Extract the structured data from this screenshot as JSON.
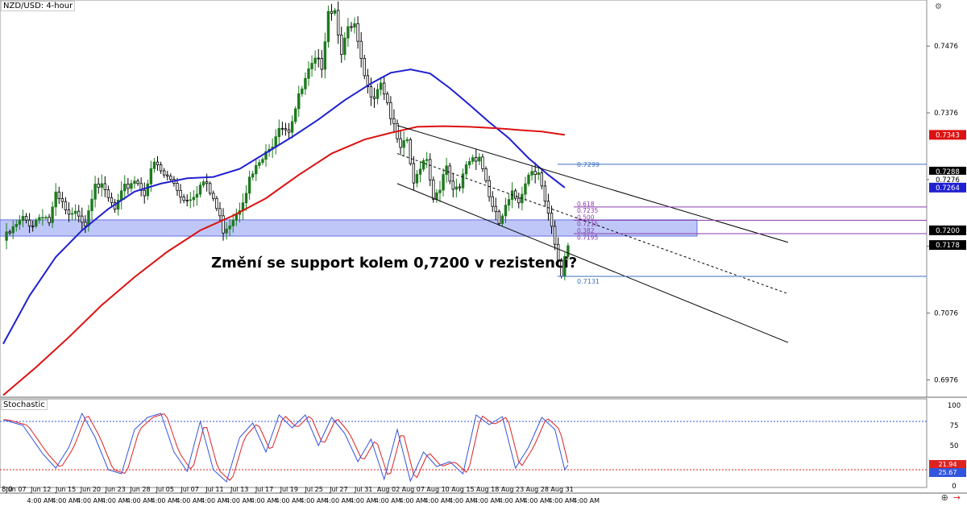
{
  "header": {
    "symbol": "NZD/USD: 4-hour"
  },
  "annotation": {
    "question": "Změní se support kolem 0,7200 v rezistenci?"
  },
  "colors": {
    "up": "#1e7a1e",
    "down": "#000000",
    "ma_fast": "#2020d0",
    "ma_slow": "#dd1111",
    "support_zone": "#aab4f5",
    "stoch_k": "#3355dd",
    "stoch_d": "#dd2222"
  },
  "chart_data": {
    "type": "candlestick",
    "title": "NZD/USD: 4-hour",
    "ylim": [
      0.695,
      0.7545
    ],
    "y_ticks": [
      "0.7476",
      "0.7376",
      "0.7276",
      "0.7176",
      "0.7076",
      "0.6976"
    ],
    "x_ticks": [
      "Jun 07",
      "Jun 12",
      "Jun 15",
      "Jun 20",
      "Jun 23",
      "Jun 28",
      "Jul 05",
      "Jul 07",
      "Jul 11",
      "Jul 13",
      "Jul 17",
      "Jul 19",
      "Jul 25",
      "Jul 27",
      "Jul 31",
      "Aug 02",
      "Aug 07",
      "Aug 10",
      "Aug 15",
      "Aug 18",
      "Aug 23",
      "Aug 28",
      "Aug 31"
    ],
    "x_sub_label": "4:00 AM",
    "x_first_label": "8:0",
    "price_path": [
      [
        0,
        0.7185
      ],
      [
        3,
        0.7201
      ],
      [
        6,
        0.7216
      ],
      [
        9,
        0.721
      ],
      [
        12,
        0.7226
      ],
      [
        14,
        0.7213
      ],
      [
        16,
        0.725
      ],
      [
        18,
        0.7238
      ],
      [
        20,
        0.7218
      ],
      [
        23,
        0.7226
      ],
      [
        25,
        0.7212
      ],
      [
        28,
        0.7276
      ],
      [
        31,
        0.7255
      ],
      [
        34,
        0.723
      ],
      [
        37,
        0.7262
      ],
      [
        40,
        0.7277
      ],
      [
        43,
        0.7258
      ],
      [
        46,
        0.73
      ],
      [
        49,
        0.7282
      ],
      [
        52,
        0.7272
      ],
      [
        55,
        0.7246
      ],
      [
        58,
        0.7255
      ],
      [
        61,
        0.7272
      ],
      [
        64,
        0.7247
      ],
      [
        67,
        0.7202
      ],
      [
        69,
        0.7212
      ],
      [
        72,
        0.7236
      ],
      [
        75,
        0.7275
      ],
      [
        78,
        0.73
      ],
      [
        81,
        0.7318
      ],
      [
        84,
        0.736
      ],
      [
        87,
        0.7352
      ],
      [
        90,
        0.7398
      ],
      [
        93,
        0.7436
      ],
      [
        95,
        0.7452
      ],
      [
        97,
        0.7448
      ],
      [
        99,
        0.7532
      ],
      [
        101,
        0.753
      ],
      [
        103,
        0.747
      ],
      [
        105,
        0.7498
      ],
      [
        107,
        0.7505
      ],
      [
        109,
        0.745
      ],
      [
        111,
        0.741
      ],
      [
        113,
        0.7405
      ],
      [
        115,
        0.7425
      ],
      [
        117,
        0.7392
      ],
      [
        119,
        0.7352
      ],
      [
        121,
        0.7318
      ],
      [
        123,
        0.7335
      ],
      [
        125,
        0.7265
      ],
      [
        127,
        0.7298
      ],
      [
        129,
        0.7312
      ],
      [
        131,
        0.7248
      ],
      [
        133,
        0.7268
      ],
      [
        135,
        0.729
      ],
      [
        137,
        0.7255
      ],
      [
        139,
        0.7262
      ],
      [
        141,
        0.73
      ],
      [
        143,
        0.731
      ],
      [
        145,
        0.7312
      ],
      [
        147,
        0.7275
      ],
      [
        149,
        0.7232
      ],
      [
        151,
        0.721
      ],
      [
        153,
        0.7232
      ],
      [
        155,
        0.7252
      ],
      [
        157,
        0.7245
      ],
      [
        159,
        0.7275
      ],
      [
        161,
        0.7292
      ],
      [
        163,
        0.729
      ],
      [
        165,
        0.724
      ],
      [
        167,
        0.72
      ],
      [
        169,
        0.715
      ],
      [
        170,
        0.7131
      ],
      [
        171,
        0.7163
      ],
      [
        172,
        0.7178
      ]
    ],
    "series": [
      {
        "name": "MA 100",
        "color": "#2020d0",
        "values": [
          [
            0,
            0.703
          ],
          [
            8,
            0.7102
          ],
          [
            16,
            0.716
          ],
          [
            24,
            0.72
          ],
          [
            32,
            0.7232
          ],
          [
            40,
            0.7258
          ],
          [
            48,
            0.727
          ],
          [
            56,
            0.7278
          ],
          [
            64,
            0.728
          ],
          [
            72,
            0.7292
          ],
          [
            80,
            0.7316
          ],
          [
            88,
            0.734
          ],
          [
            96,
            0.7366
          ],
          [
            104,
            0.7395
          ],
          [
            112,
            0.742
          ],
          [
            118,
            0.7436
          ],
          [
            124,
            0.7441
          ],
          [
            130,
            0.7435
          ],
          [
            136,
            0.7413
          ],
          [
            142,
            0.7388
          ],
          [
            148,
            0.7362
          ],
          [
            154,
            0.7338
          ],
          [
            160,
            0.7308
          ],
          [
            166,
            0.7283
          ],
          [
            171,
            0.7264
          ]
        ]
      },
      {
        "name": "MA 200",
        "color": "#dd1111",
        "values": [
          [
            0,
            0.6953
          ],
          [
            10,
            0.6995
          ],
          [
            20,
            0.704
          ],
          [
            30,
            0.7088
          ],
          [
            40,
            0.713
          ],
          [
            50,
            0.7168
          ],
          [
            60,
            0.72
          ],
          [
            70,
            0.7222
          ],
          [
            80,
            0.7248
          ],
          [
            90,
            0.7283
          ],
          [
            100,
            0.7315
          ],
          [
            110,
            0.7336
          ],
          [
            118,
            0.7346
          ],
          [
            126,
            0.7355
          ],
          [
            134,
            0.7356
          ],
          [
            142,
            0.7355
          ],
          [
            150,
            0.7353
          ],
          [
            158,
            0.735
          ],
          [
            164,
            0.7348
          ],
          [
            171,
            0.7343
          ]
        ]
      }
    ],
    "price_tags": [
      {
        "label": "0.7343",
        "value": 0.7343,
        "bg": "#dd1111",
        "fg": "#ffffff"
      },
      {
        "label": "0.7288",
        "value": 0.7288,
        "bg": "#000000",
        "fg": "#ffffff"
      },
      {
        "label": "0.7276",
        "value": 0.7276,
        "bg": "#ffffff",
        "fg": "#000000"
      },
      {
        "label": "0.7264",
        "value": 0.7264,
        "bg": "#2020d0",
        "fg": "#ffffff"
      },
      {
        "label": "0.7200",
        "value": 0.72,
        "bg": "#000000",
        "fg": "#ffffff"
      },
      {
        "label": "0.7178",
        "value": 0.7178,
        "bg": "#000000",
        "fg": "#ffffff"
      }
    ],
    "support_zone": [
      0.7195,
      0.7212
    ],
    "channel": {
      "start_index": 120,
      "end_index": 239,
      "upper": [
        0.7357,
        0.7182
      ],
      "middle": [
        0.7315,
        0.7105
      ],
      "lower": [
        0.727,
        0.7032
      ]
    },
    "fibonacci": {
      "high": {
        "label": "0.7299",
        "value": 0.7299
      },
      "low": {
        "label": "0.7131",
        "value": 0.7131
      },
      "levels": [
        {
          "label": "0.618",
          "value": 0.7235
        },
        {
          "label": "0.7235",
          "value": 0.7225
        },
        {
          "label": "0.500",
          "value": 0.7215
        },
        {
          "label": "0.7215",
          "value": 0.7205
        },
        {
          "label": "0.382",
          "value": 0.7195
        },
        {
          "label": "0.7195",
          "value": 0.7185
        }
      ]
    },
    "stochastic": {
      "label": "Stochastic",
      "ylim": [
        0,
        100
      ],
      "y_ticks": [
        "100",
        "75",
        "50",
        "25",
        "0"
      ],
      "levels": [
        80,
        20
      ],
      "k_label": "21.94",
      "d_label": "25.67",
      "k": [
        [
          0,
          82
        ],
        [
          6,
          75
        ],
        [
          12,
          40
        ],
        [
          16,
          22
        ],
        [
          20,
          48
        ],
        [
          24,
          90
        ],
        [
          28,
          60
        ],
        [
          32,
          20
        ],
        [
          36,
          15
        ],
        [
          40,
          70
        ],
        [
          44,
          85
        ],
        [
          48,
          90
        ],
        [
          52,
          42
        ],
        [
          56,
          18
        ],
        [
          60,
          80
        ],
        [
          64,
          20
        ],
        [
          68,
          5
        ],
        [
          72,
          60
        ],
        [
          76,
          78
        ],
        [
          80,
          42
        ],
        [
          84,
          88
        ],
        [
          88,
          72
        ],
        [
          92,
          88
        ],
        [
          96,
          50
        ],
        [
          100,
          85
        ],
        [
          104,
          65
        ],
        [
          108,
          30
        ],
        [
          112,
          58
        ],
        [
          116,
          8
        ],
        [
          120,
          70
        ],
        [
          124,
          6
        ],
        [
          128,
          42
        ],
        [
          132,
          24
        ],
        [
          136,
          30
        ],
        [
          140,
          15
        ],
        [
          144,
          88
        ],
        [
          148,
          76
        ],
        [
          152,
          86
        ],
        [
          156,
          22
        ],
        [
          160,
          48
        ],
        [
          164,
          85
        ],
        [
          168,
          70
        ],
        [
          171,
          20
        ],
        [
          172,
          26
        ]
      ]
    },
    "grid": false,
    "legend": "none"
  },
  "toolbar": {
    "icons": [
      "link-icon",
      "share-icon"
    ]
  }
}
